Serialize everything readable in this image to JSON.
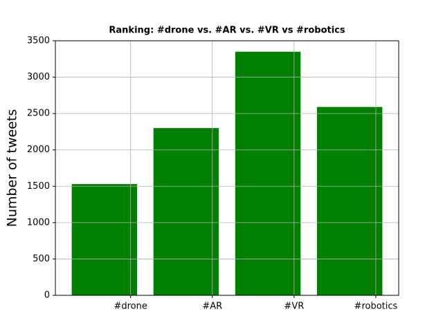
{
  "chart_data": {
    "type": "bar",
    "title": "Ranking: #drone vs. #AR vs. #VR vs #robotics",
    "y_label": "Number of tweets",
    "categories": [
      "#drone",
      "#AR",
      "#VR",
      "#robotics"
    ],
    "values": [
      1530,
      2300,
      3350,
      2590
    ],
    "color": "#008000",
    "ylim": [
      0,
      3500
    ],
    "yticks": [
      0,
      500,
      1000,
      1500,
      2000,
      2500,
      3000,
      3500
    ],
    "grid": true
  }
}
